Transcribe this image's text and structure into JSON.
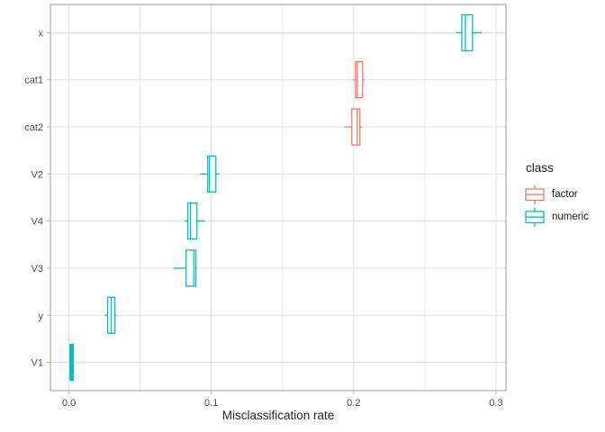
{
  "chart_data": {
    "type": "boxplot",
    "orientation": "horizontal",
    "title": "",
    "xlabel": "Misclassification rate",
    "ylabel": "",
    "categories_top_to_bottom": [
      "x",
      "cat1",
      "cat2",
      "V2",
      "V4",
      "V3",
      "y",
      "V1"
    ],
    "x_tick_values": [
      0.0,
      0.1,
      0.2,
      0.3
    ],
    "x_tick_labels": [
      "0.0",
      "0.1",
      "0.2",
      "0.3"
    ],
    "x_minor_gridlines": [
      0.05,
      0.15,
      0.25
    ],
    "xlim": [
      -0.013,
      0.307
    ],
    "grid": true,
    "legend": {
      "title": "class",
      "position": "right",
      "items": [
        {
          "label": "factor",
          "color": "#F8766D"
        },
        {
          "label": "numeric",
          "color": "#00BFC4"
        }
      ]
    },
    "series": [
      {
        "category": "x",
        "class": "numeric",
        "whisker_low": 0.272,
        "q1": 0.276,
        "median": 0.2785,
        "q3": 0.2835,
        "whisker_high": 0.29
      },
      {
        "category": "cat1",
        "class": "factor",
        "whisker_low": 0.1994,
        "q1": 0.2013,
        "median": 0.2025,
        "q3": 0.2063,
        "whisker_high": 0.2076
      },
      {
        "category": "cat2",
        "class": "factor",
        "whisker_low": 0.1937,
        "q1": 0.1987,
        "median": 0.2025,
        "q3": 0.2044,
        "whisker_high": 0.2057
      },
      {
        "category": "V2",
        "class": "numeric",
        "whisker_low": 0.0918,
        "q1": 0.0975,
        "median": 0.0987,
        "q3": 0.1032,
        "whisker_high": 0.1057
      },
      {
        "category": "V4",
        "class": "numeric",
        "whisker_low": 0.081,
        "q1": 0.0835,
        "median": 0.0854,
        "q3": 0.0899,
        "whisker_high": 0.0956
      },
      {
        "category": "V3",
        "class": "numeric",
        "whisker_low": 0.0734,
        "q1": 0.0823,
        "median": 0.0877,
        "q3": 0.0892,
        "whisker_high": 0.0899
      },
      {
        "category": "y",
        "class": "numeric",
        "whisker_low": 0.0253,
        "q1": 0.0272,
        "median": 0.0297,
        "q3": 0.0323,
        "whisker_high": 0.0335
      },
      {
        "category": "V1",
        "class": "numeric",
        "whisker_low": 0.0004,
        "q1": 0.0008,
        "median": 0.0019,
        "q3": 0.003,
        "whisker_high": 0.0034
      }
    ],
    "style_colors": {
      "background": "#FFFFFF",
      "panel_border": "#ACACAC",
      "grid_major": "#DFDFDF",
      "grid_minor": "#EBEBEB",
      "tick_mark": "#B3B3B3",
      "axis_text": "#4D4D4D",
      "axis_title": "#262626",
      "legend_text": "#1A1A1A"
    }
  }
}
